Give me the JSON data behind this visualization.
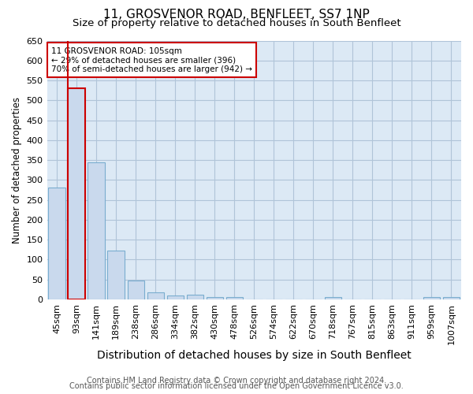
{
  "title": "11, GROSVENOR ROAD, BENFLEET, SS7 1NP",
  "subtitle": "Size of property relative to detached houses in South Benfleet",
  "xlabel": "Distribution of detached houses by size in South Benfleet",
  "ylabel": "Number of detached properties",
  "bar_labels": [
    "45sqm",
    "93sqm",
    "141sqm",
    "189sqm",
    "238sqm",
    "286sqm",
    "334sqm",
    "382sqm",
    "430sqm",
    "478sqm",
    "526sqm",
    "574sqm",
    "622sqm",
    "670sqm",
    "718sqm",
    "767sqm",
    "815sqm",
    "863sqm",
    "911sqm",
    "959sqm",
    "1007sqm"
  ],
  "bar_values": [
    280,
    530,
    345,
    122,
    47,
    18,
    10,
    11,
    6,
    5,
    0,
    0,
    0,
    0,
    5,
    0,
    0,
    0,
    0,
    5,
    5
  ],
  "bar_color": "#c9d9ed",
  "bar_edge_color": "#7aadcf",
  "highlight_bar_index": 1,
  "highlight_color": "#cc0000",
  "annotation_text": "11 GROSVENOR ROAD: 105sqm\n← 29% of detached houses are smaller (396)\n70% of semi-detached houses are larger (942) →",
  "annotation_box_color": "#ffffff",
  "annotation_box_edge": "#cc0000",
  "ylim": [
    0,
    650
  ],
  "yticks": [
    0,
    50,
    100,
    150,
    200,
    250,
    300,
    350,
    400,
    450,
    500,
    550,
    600,
    650
  ],
  "footer_line1": "Contains HM Land Registry data © Crown copyright and database right 2024.",
  "footer_line2": "Contains public sector information licensed under the Open Government Licence v3.0.",
  "bg_color": "#ffffff",
  "plot_bg_color": "#dce9f5",
  "grid_color": "#b0c4d8",
  "title_fontsize": 11,
  "subtitle_fontsize": 9.5,
  "xlabel_fontsize": 10,
  "ylabel_fontsize": 8.5,
  "tick_fontsize": 8,
  "footer_fontsize": 7
}
